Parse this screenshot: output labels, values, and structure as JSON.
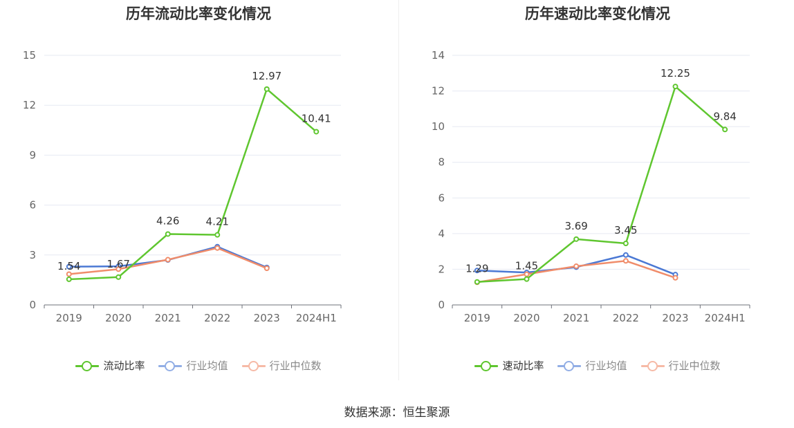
{
  "chart_data": [
    {
      "type": "line",
      "title": "历年流动比率变化情况",
      "categories": [
        "2019",
        "2020",
        "2021",
        "2022",
        "2023",
        "2024H1"
      ],
      "y_ticks": [
        0,
        3,
        6,
        9,
        12,
        15
      ],
      "ylim": [
        0,
        15
      ],
      "grid": true,
      "legend_position": "bottom",
      "series": [
        {
          "name": "流动比率",
          "color": "#5fc62f",
          "values": [
            1.54,
            1.67,
            4.26,
            4.21,
            12.97,
            10.41
          ],
          "labels": [
            "1.54",
            "1.67",
            "4.26",
            "4.21",
            "12.97",
            "10.41"
          ]
        },
        {
          "name": "行业均值",
          "color": "#4a78d4",
          "values": [
            2.3,
            2.32,
            2.7,
            3.5,
            2.25,
            null
          ]
        },
        {
          "name": "行业中位数",
          "color": "#f08c6a",
          "values": [
            1.85,
            2.15,
            2.72,
            3.42,
            2.2,
            null
          ]
        }
      ]
    },
    {
      "type": "line",
      "title": "历年速动比率变化情况",
      "categories": [
        "2019",
        "2020",
        "2021",
        "2022",
        "2023",
        "2024H1"
      ],
      "y_ticks": [
        0,
        2,
        4,
        6,
        8,
        10,
        12,
        14
      ],
      "ylim": [
        0,
        14
      ],
      "grid": true,
      "legend_position": "bottom",
      "series": [
        {
          "name": "速动比率",
          "color": "#5fc62f",
          "values": [
            1.29,
            1.45,
            3.69,
            3.45,
            12.25,
            9.84
          ],
          "labels": [
            "1.29",
            "1.45",
            "3.69",
            "3.45",
            "12.25",
            "9.84"
          ]
        },
        {
          "name": "行业均值",
          "color": "#4a78d4",
          "values": [
            1.93,
            1.82,
            2.12,
            2.8,
            1.7,
            null
          ]
        },
        {
          "name": "行业中位数",
          "color": "#f08c6a",
          "values": [
            1.27,
            1.72,
            2.17,
            2.47,
            1.52,
            null
          ]
        }
      ]
    }
  ],
  "footer": {
    "source": "数据来源：恒生聚源"
  }
}
